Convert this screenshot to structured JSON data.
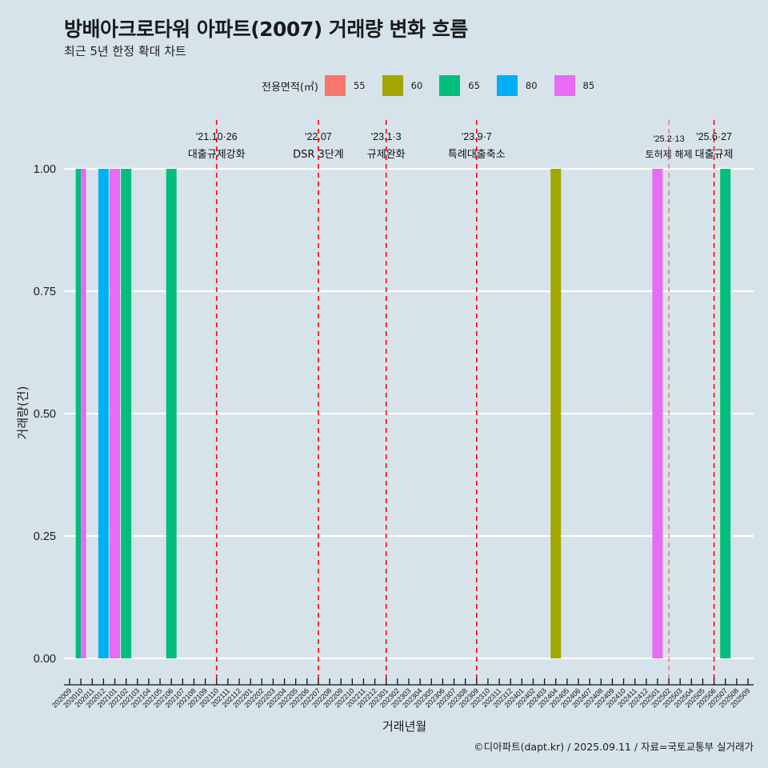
{
  "header": {
    "title": "방배아크로타워 아파트(2007) 거래량 변화 흐름",
    "subtitle": "최근 5년 한정 확대 차트"
  },
  "legend": {
    "title": "전용면적(㎡)",
    "items": [
      {
        "label": "55",
        "color": "#f8766d"
      },
      {
        "label": "60",
        "color": "#a3a500"
      },
      {
        "label": "65",
        "color": "#00bf7d"
      },
      {
        "label": "80",
        "color": "#00b0f6"
      },
      {
        "label": "85",
        "color": "#e76bf3"
      }
    ]
  },
  "footer": "©디아파트(dapt.kr) / 2025.09.11 / 자료=국토교통부 실거래가",
  "chart_data": {
    "type": "bar",
    "title": "방배아크로타워 아파트(2007) 거래량 변화 흐름",
    "subtitle": "최근 5년 한정 확대 차트",
    "xlabel": "거래년월",
    "ylabel": "거래량(건)",
    "ylim": [
      0,
      1
    ],
    "yticks": [
      "0.00",
      "0.25",
      "0.50",
      "0.75",
      "1.00"
    ],
    "ytick_values": [
      0,
      0.25,
      0.5,
      0.75,
      1.0
    ],
    "grid": true,
    "legend_position": "top",
    "categories": [
      "202009",
      "202010",
      "202011",
      "202012",
      "202101",
      "202102",
      "202103",
      "202104",
      "202105",
      "202106",
      "202107",
      "202108",
      "202109",
      "202110",
      "202111",
      "202112",
      "202201",
      "202202",
      "202203",
      "202204",
      "202205",
      "202206",
      "202207",
      "202208",
      "202209",
      "202210",
      "202211",
      "202212",
      "202301",
      "202302",
      "202303",
      "202304",
      "202305",
      "202306",
      "202307",
      "202308",
      "202309",
      "202310",
      "202311",
      "202312",
      "202401",
      "202402",
      "202403",
      "202404",
      "202405",
      "202406",
      "202407",
      "202408",
      "202409",
      "202410",
      "202411",
      "202412",
      "202501",
      "202502",
      "202503",
      "202504",
      "202505",
      "202506",
      "202507",
      "202508",
      "202509"
    ],
    "series": [
      {
        "name": "55",
        "color": "#f8766d",
        "points": []
      },
      {
        "name": "60",
        "color": "#a3a500",
        "points": [
          {
            "x": "202404",
            "y": 1
          }
        ]
      },
      {
        "name": "65",
        "color": "#00bf7d",
        "points": [
          {
            "x": "202010",
            "y": 1
          },
          {
            "x": "202102",
            "y": 1
          },
          {
            "x": "202106",
            "y": 1
          },
          {
            "x": "202507",
            "y": 1
          }
        ]
      },
      {
        "name": "80",
        "color": "#00b0f6",
        "points": [
          {
            "x": "202012",
            "y": 1
          }
        ]
      },
      {
        "name": "85",
        "color": "#e76bf3",
        "points": [
          {
            "x": "202010",
            "y": 1
          },
          {
            "x": "202101",
            "y": 1
          },
          {
            "x": "202501",
            "y": 1
          }
        ]
      }
    ],
    "events": [
      {
        "x": "202110",
        "date": "'21.10·26",
        "label": "대출규제강화"
      },
      {
        "x": "202207",
        "date": "'22.07",
        "label": "DSR 3단계"
      },
      {
        "x": "202301",
        "date": "'23.1·3",
        "label": "규제완화"
      },
      {
        "x": "202309",
        "date": "'23.9·7",
        "label": "특례대출축소"
      },
      {
        "x": "202502",
        "date": "'25.2·13",
        "label": "토허제 해제"
      },
      {
        "x": "202506",
        "date": "'25.6·27",
        "label": "대출규제"
      }
    ],
    "event_line_color": "#ff0000"
  }
}
